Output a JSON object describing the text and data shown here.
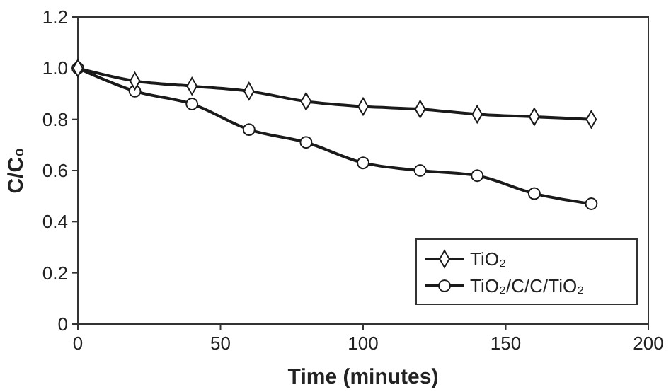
{
  "chart_data": {
    "type": "line",
    "xlabel": "Time (minutes)",
    "ylabel": "C/C₀",
    "x": [
      0,
      20,
      40,
      60,
      80,
      100,
      120,
      140,
      160,
      180
    ],
    "series": [
      {
        "name": "TiO₂",
        "color": "#1a1a1a",
        "marker": "diamond",
        "values": [
          1.0,
          0.95,
          0.93,
          0.91,
          0.87,
          0.85,
          0.84,
          0.82,
          0.81,
          0.8
        ]
      },
      {
        "name": "TiO₂/C/C/TiO₂",
        "color": "#1a1a1a",
        "marker": "circle",
        "values": [
          1.0,
          0.91,
          0.86,
          0.76,
          0.71,
          0.63,
          0.6,
          0.58,
          0.51,
          0.47
        ]
      }
    ],
    "xlim": [
      0,
      200
    ],
    "xticks": [
      0,
      50,
      100,
      150,
      200
    ],
    "ylim": [
      0,
      1.2
    ],
    "yticks": [
      0,
      0.2,
      0.4,
      0.6,
      0.8,
      {
        "value": 1,
        "label": "1.0"
      },
      1.2
    ],
    "grid": false,
    "legend": "bottom right",
    "line_style": "solid"
  }
}
